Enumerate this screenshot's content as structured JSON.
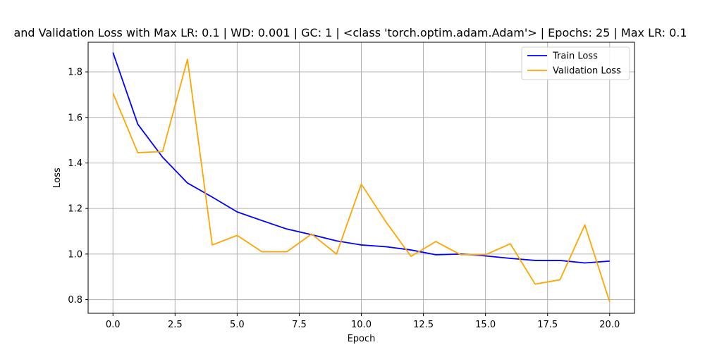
{
  "chart_data": {
    "type": "line",
    "title": "and Validation Loss with Max LR: 0.1 | WD: 0.001 | GC: 1 | <class 'torch.optim.adam.Adam'> | Epochs: 25 | Max LR: 0.1",
    "xlabel": "Epoch",
    "ylabel": "Loss",
    "xlim": [
      -1.0,
      21.0
    ],
    "ylim": [
      0.74,
      1.93
    ],
    "xticks": [
      0.0,
      2.5,
      5.0,
      7.5,
      10.0,
      12.5,
      15.0,
      17.5,
      20.0
    ],
    "xtick_labels": [
      "0.0",
      "2.5",
      "5.0",
      "7.5",
      "10.0",
      "12.5",
      "15.0",
      "17.5",
      "20.0"
    ],
    "yticks": [
      0.8,
      1.0,
      1.2,
      1.4,
      1.6,
      1.8
    ],
    "ytick_labels": [
      "0.8",
      "1.0",
      "1.2",
      "1.4",
      "1.6",
      "1.8"
    ],
    "grid": true,
    "legend_position": "top-right",
    "x": [
      0,
      1,
      2,
      3,
      4,
      5,
      6,
      7,
      8,
      9,
      10,
      11,
      12,
      13,
      14,
      15,
      16,
      17,
      18,
      19,
      20
    ],
    "series": [
      {
        "name": "Train Loss",
        "color": "#0000ff",
        "values": [
          1.885,
          1.57,
          1.425,
          1.312,
          1.25,
          1.185,
          1.147,
          1.11,
          1.085,
          1.058,
          1.04,
          1.032,
          1.018,
          0.997,
          1.0,
          0.992,
          0.981,
          0.972,
          0.972,
          0.961,
          0.969
        ]
      },
      {
        "name": "Validation Loss",
        "color": "#ffa500",
        "values": [
          1.707,
          1.445,
          1.45,
          1.855,
          1.04,
          1.082,
          1.01,
          1.01,
          1.088,
          1.0,
          1.307,
          1.14,
          0.99,
          1.055,
          0.997,
          0.997,
          1.045,
          0.868,
          0.887,
          1.128,
          0.79
        ]
      }
    ]
  }
}
